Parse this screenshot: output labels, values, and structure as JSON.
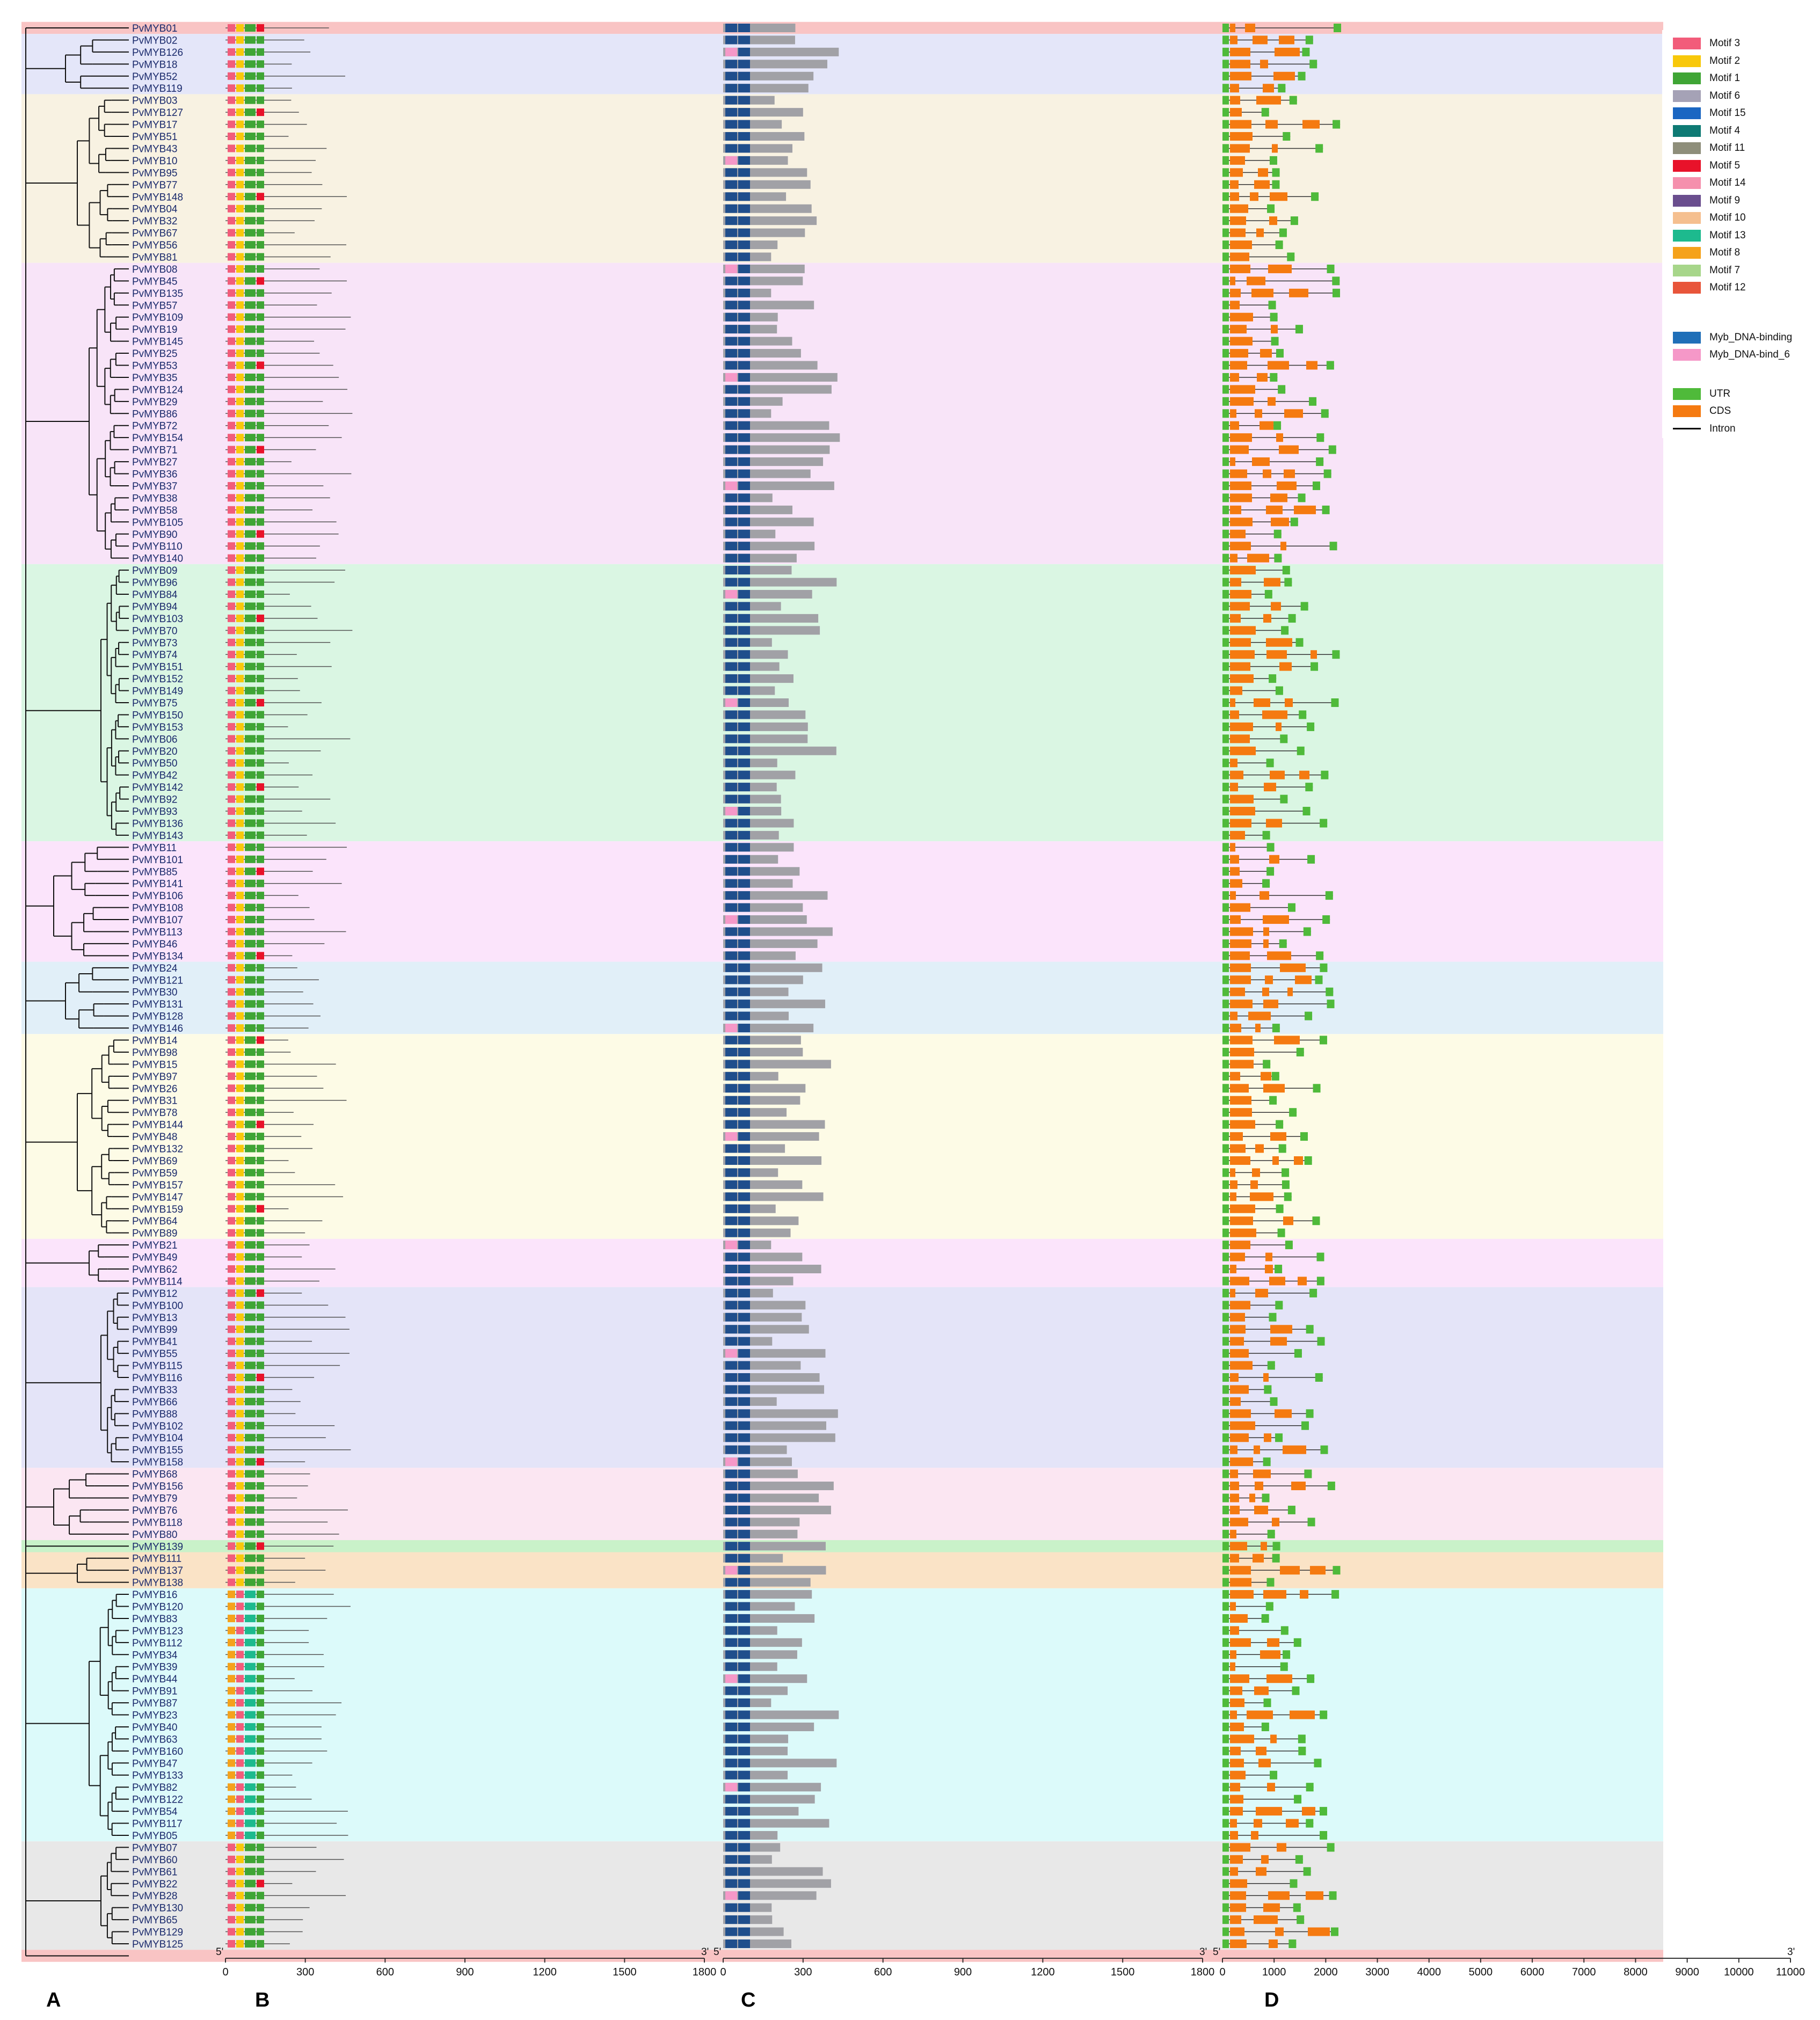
{
  "panel_labels": [
    "A",
    "B",
    "C",
    "D"
  ],
  "axis_B": {
    "start_label": "5'",
    "end_label": "3'",
    "ticks": [
      "0",
      "300",
      "600",
      "900",
      "1200",
      "1500",
      "1800"
    ],
    "max": 1800
  },
  "axis_C": {
    "start_label": "5'",
    "end_label": "3'",
    "ticks": [
      "0",
      "300",
      "600",
      "900",
      "1200",
      "1500",
      "1800"
    ],
    "max": 1800
  },
  "axis_D": {
    "start_label": "5'",
    "end_label": "3'",
    "ticks": [
      "0",
      "1000",
      "2000",
      "3000",
      "4000",
      "5000",
      "6000",
      "7000",
      "8000",
      "9000",
      "10000",
      "11000"
    ],
    "max": 11000
  },
  "legend": {
    "motifs": [
      {
        "label": "Motif 3",
        "color": "#f25c7a"
      },
      {
        "label": "Motif 2",
        "color": "#f8c80a"
      },
      {
        "label": "Motif 1",
        "color": "#3fa535"
      },
      {
        "label": "Motif 6",
        "color": "#a5a2b6"
      },
      {
        "label": "Motif 15",
        "color": "#1a66c2"
      },
      {
        "label": "Motif 4",
        "color": "#0e7a74"
      },
      {
        "label": "Motif 11",
        "color": "#8e8e7a"
      },
      {
        "label": "Motif 5",
        "color": "#e8122a"
      },
      {
        "label": "Motif 14",
        "color": "#f590ad"
      },
      {
        "label": "Motif 9",
        "color": "#6a4e8e"
      },
      {
        "label": "Motif 10",
        "color": "#f5bf8f"
      },
      {
        "label": "Motif 13",
        "color": "#1dba8e"
      },
      {
        "label": "Motif 8",
        "color": "#f5a21b"
      },
      {
        "label": "Motif 7",
        "color": "#a7d68a"
      },
      {
        "label": "Motif 12",
        "color": "#e8553a"
      }
    ],
    "domains": [
      {
        "label": "Myb_DNA-binding",
        "color": "#1f6fb8"
      },
      {
        "label": "Myb_DNA-bind_6",
        "color": "#f598c8"
      }
    ],
    "structure": [
      {
        "label": "UTR",
        "color": "#4fba3a",
        "kind": "box"
      },
      {
        "label": "CDS",
        "color": "#f57a10",
        "kind": "box"
      },
      {
        "label": "Intron",
        "color": "#000000",
        "kind": "line"
      }
    ]
  },
  "genes": [
    "PvMYB01",
    "PvMYB02",
    "PvMYB126",
    "PvMYB18",
    "PvMYB52",
    "PvMYB119",
    "PvMYB03",
    "PvMYB127",
    "PvMYB17",
    "PvMYB51",
    "PvMYB43",
    "PvMYB10",
    "PvMYB95",
    "PvMYB77",
    "PvMYB148",
    "PvMYB04",
    "PvMYB32",
    "PvMYB67",
    "PvMYB56",
    "PvMYB81",
    "PvMYB08",
    "PvMYB45",
    "PvMYB135",
    "PvMYB57",
    "PvMYB109",
    "PvMYB19",
    "PvMYB145",
    "PvMYB25",
    "PvMYB53",
    "PvMYB35",
    "PvMYB124",
    "PvMYB29",
    "PvMYB86",
    "PvMYB72",
    "PvMYB154",
    "PvMYB71",
    "PvMYB27",
    "PvMYB36",
    "PvMYB37",
    "PvMYB38",
    "PvMYB58",
    "PvMYB105",
    "PvMYB90",
    "PvMYB110",
    "PvMYB140",
    "PvMYB09",
    "PvMYB96",
    "PvMYB84",
    "PvMYB94",
    "PvMYB103",
    "PvMYB70",
    "PvMYB73",
    "PvMYB74",
    "PvMYB151",
    "PvMYB152",
    "PvMYB149",
    "PvMYB75",
    "PvMYB150",
    "PvMYB153",
    "PvMYB06",
    "PvMYB20",
    "PvMYB50",
    "PvMYB42",
    "PvMYB142",
    "PvMYB92",
    "PvMYB93",
    "PvMYB136",
    "PvMYB143",
    "PvMYB11",
    "PvMYB101",
    "PvMYB85",
    "PvMYB141",
    "PvMYB106",
    "PvMYB108",
    "PvMYB107",
    "PvMYB113",
    "PvMYB46",
    "PvMYB134",
    "PvMYB24",
    "PvMYB121",
    "PvMYB30",
    "PvMYB131",
    "PvMYB128",
    "PvMYB146",
    "PvMYB14",
    "PvMYB98",
    "PvMYB15",
    "PvMYB97",
    "PvMYB26",
    "PvMYB31",
    "PvMYB78",
    "PvMYB144",
    "PvMYB48",
    "PvMYB132",
    "PvMYB69",
    "PvMYB59",
    "PvMYB157",
    "PvMYB147",
    "PvMYB159",
    "PvMYB64",
    "PvMYB89",
    "PvMYB21",
    "PvMYB49",
    "PvMYB62",
    "PvMYB114",
    "PvMYB12",
    "PvMYB100",
    "PvMYB13",
    "PvMYB99",
    "PvMYB41",
    "PvMYB55",
    "PvMYB115",
    "PvMYB116",
    "PvMYB33",
    "PvMYB66",
    "PvMYB88",
    "PvMYB102",
    "PvMYB104",
    "PvMYB155",
    "PvMYB158",
    "PvMYB68",
    "PvMYB156",
    "PvMYB79",
    "PvMYB76",
    "PvMYB118",
    "PvMYB80",
    "PvMYB139",
    "PvMYB111",
    "PvMYB137",
    "PvMYB138",
    "PvMYB16",
    "PvMYB120",
    "PvMYB83",
    "PvMYB123",
    "PvMYB112",
    "PvMYB34",
    "PvMYB39",
    "PvMYB44",
    "PvMYB91",
    "PvMYB87",
    "PvMYB23",
    "PvMYB40",
    "PvMYB63",
    "PvMYB160",
    "PvMYB47",
    "PvMYB133",
    "PvMYB82",
    "PvMYB122",
    "PvMYB54",
    "PvMYB117",
    "PvMYB05",
    "PvMYB07",
    "PvMYB60",
    "PvMYB61",
    "PvMYB22",
    "PvMYB28",
    "PvMYB130",
    "PvMYB65",
    "PvMYB129",
    "PvMYB125"
  ],
  "groups": [
    {
      "start": 0,
      "end": 0,
      "color": "#f9c4c4"
    },
    {
      "start": 1,
      "end": 5,
      "color": "#e4e6f9"
    },
    {
      "start": 6,
      "end": 19,
      "color": "#f8f2e2"
    },
    {
      "start": 20,
      "end": 44,
      "color": "#f8e4f8"
    },
    {
      "start": 45,
      "end": 67,
      "color": "#daf6e3"
    },
    {
      "start": 68,
      "end": 77,
      "color": "#fbe4fb"
    },
    {
      "start": 78,
      "end": 83,
      "color": "#e1eff8"
    },
    {
      "start": 84,
      "end": 100,
      "color": "#fdfbe6"
    },
    {
      "start": 101,
      "end": 104,
      "color": "#fbe4fb"
    },
    {
      "start": 105,
      "end": 119,
      "color": "#e4e4f8"
    },
    {
      "start": 120,
      "end": 125,
      "color": "#fbe6f2"
    },
    {
      "start": 126,
      "end": 126,
      "color": "#c9f2c9"
    },
    {
      "start": 127,
      "end": 129,
      "color": "#fae3c6"
    },
    {
      "start": 130,
      "end": 150,
      "color": "#dcfafa"
    },
    {
      "start": 151,
      "end": 159,
      "color": "#e8e8e8"
    },
    {
      "start": 160,
      "end": 160,
      "color": "#f9c4c4"
    }
  ]
}
